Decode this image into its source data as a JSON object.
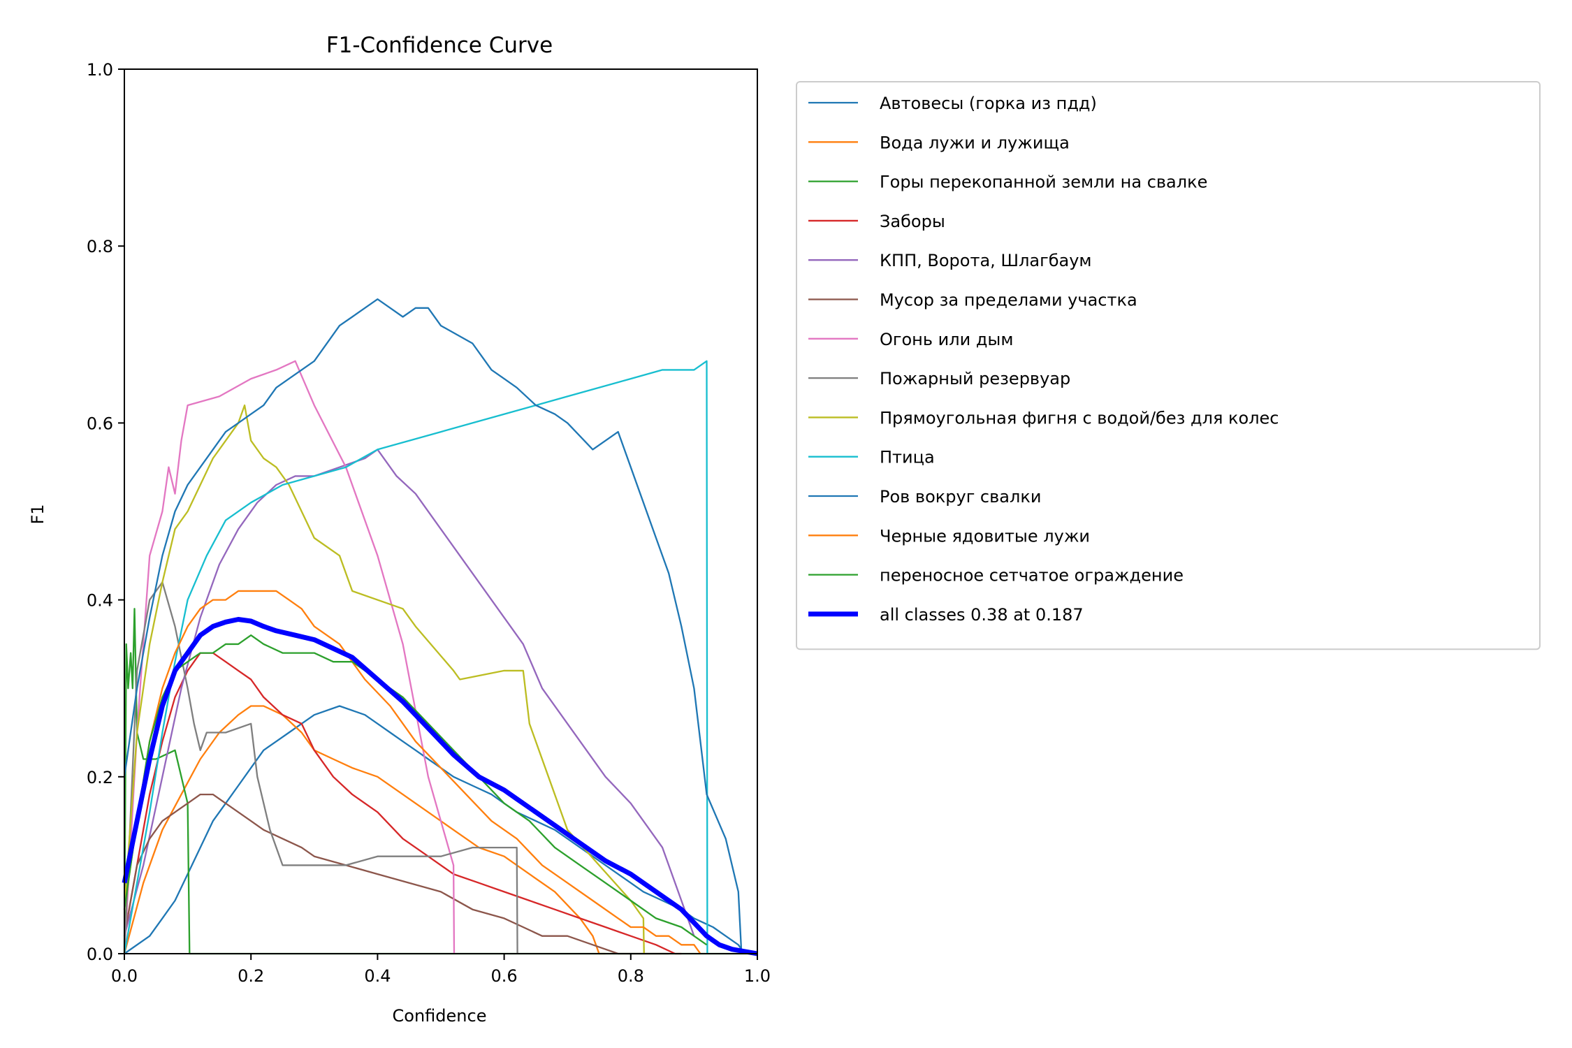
{
  "chart_data": {
    "type": "line",
    "title": "F1-Confidence Curve",
    "xlabel": "Confidence",
    "ylabel": "F1",
    "xlim": [
      0,
      1
    ],
    "ylim": [
      0,
      1
    ],
    "x_ticks": [
      "0.0",
      "0.2",
      "0.4",
      "0.6",
      "0.8",
      "1.0"
    ],
    "y_ticks": [
      "0.0",
      "0.2",
      "0.4",
      "0.6",
      "0.8",
      "1.0"
    ],
    "grid": false,
    "legend_position": "outside-right",
    "series": [
      {
        "name": "Автовесы (горка из пдд)",
        "color": "#1f77b4",
        "width": 1.5,
        "x": [
          0.0,
          0.04,
          0.06,
          0.08,
          0.1,
          0.12,
          0.14,
          0.16,
          0.18,
          0.2,
          0.22,
          0.24,
          0.26,
          0.28,
          0.3,
          0.34,
          0.38,
          0.4,
          0.42,
          0.44,
          0.46,
          0.48,
          0.5,
          0.52,
          0.55,
          0.58,
          0.6,
          0.62,
          0.65,
          0.68,
          0.7,
          0.72,
          0.74,
          0.76,
          0.78,
          0.8,
          0.82,
          0.85,
          0.88,
          0.9,
          0.93,
          0.95,
          0.97,
          0.98
        ],
        "y": [
          0.0,
          0.02,
          0.04,
          0.06,
          0.09,
          0.12,
          0.15,
          0.17,
          0.19,
          0.21,
          0.23,
          0.24,
          0.25,
          0.26,
          0.27,
          0.28,
          0.27,
          0.26,
          0.25,
          0.24,
          0.23,
          0.22,
          0.21,
          0.2,
          0.19,
          0.18,
          0.17,
          0.16,
          0.15,
          0.14,
          0.13,
          0.12,
          0.11,
          0.1,
          0.09,
          0.08,
          0.07,
          0.06,
          0.05,
          0.04,
          0.03,
          0.02,
          0.01,
          0.0
        ]
      },
      {
        "name": "Вода лужи и лужища",
        "color": "#ff7f0e",
        "width": 1.5,
        "x": [
          0.0,
          0.03,
          0.06,
          0.09,
          0.12,
          0.15,
          0.18,
          0.2,
          0.22,
          0.25,
          0.28,
          0.3,
          0.33,
          0.36,
          0.4,
          0.44,
          0.48,
          0.52,
          0.56,
          0.6,
          0.64,
          0.68,
          0.72,
          0.74,
          0.75,
          0.76
        ],
        "y": [
          0.0,
          0.08,
          0.14,
          0.18,
          0.22,
          0.25,
          0.27,
          0.28,
          0.28,
          0.27,
          0.25,
          0.23,
          0.22,
          0.21,
          0.2,
          0.18,
          0.16,
          0.14,
          0.12,
          0.11,
          0.09,
          0.07,
          0.04,
          0.02,
          0.0,
          0.0
        ]
      },
      {
        "name": "Горы перекопанной земли на свалке",
        "color": "#2ca02c",
        "width": 1.5,
        "x": [
          0.0,
          0.003,
          0.006,
          0.01,
          0.013,
          0.016,
          0.02,
          0.03,
          0.05,
          0.08,
          0.1,
          0.103,
          0.11,
          0.2,
          0.4,
          0.6,
          0.8,
          1.0
        ],
        "y": [
          0.0,
          0.35,
          0.3,
          0.34,
          0.3,
          0.39,
          0.25,
          0.22,
          0.22,
          0.23,
          0.17,
          0.0,
          0.0,
          0.0,
          0.0,
          0.0,
          0.0,
          0.0
        ]
      },
      {
        "name": "Заборы",
        "color": "#d62728",
        "width": 1.5,
        "x": [
          0.0,
          0.02,
          0.04,
          0.06,
          0.08,
          0.1,
          0.12,
          0.14,
          0.16,
          0.18,
          0.2,
          0.22,
          0.25,
          0.28,
          0.3,
          0.33,
          0.36,
          0.4,
          0.44,
          0.48,
          0.52,
          0.56,
          0.6,
          0.64,
          0.68,
          0.72,
          0.76,
          0.8,
          0.84,
          0.87,
          0.88
        ],
        "y": [
          0.02,
          0.1,
          0.18,
          0.24,
          0.29,
          0.32,
          0.34,
          0.34,
          0.33,
          0.32,
          0.31,
          0.29,
          0.27,
          0.26,
          0.23,
          0.2,
          0.18,
          0.16,
          0.13,
          0.11,
          0.09,
          0.08,
          0.07,
          0.06,
          0.05,
          0.04,
          0.03,
          0.02,
          0.01,
          0.0,
          0.0
        ]
      },
      {
        "name": "КПП, Ворота, Шлагбаум",
        "color": "#9467bd",
        "width": 1.5,
        "x": [
          0.0,
          0.03,
          0.06,
          0.09,
          0.12,
          0.15,
          0.18,
          0.21,
          0.24,
          0.27,
          0.3,
          0.34,
          0.38,
          0.4,
          0.43,
          0.46,
          0.5,
          0.53,
          0.56,
          0.6,
          0.63,
          0.66,
          0.7,
          0.73,
          0.76,
          0.8,
          0.82,
          0.85,
          0.88,
          0.9
        ],
        "y": [
          0.02,
          0.1,
          0.2,
          0.3,
          0.38,
          0.44,
          0.48,
          0.51,
          0.53,
          0.54,
          0.54,
          0.55,
          0.56,
          0.57,
          0.54,
          0.52,
          0.48,
          0.45,
          0.42,
          0.38,
          0.35,
          0.3,
          0.26,
          0.23,
          0.2,
          0.17,
          0.15,
          0.12,
          0.06,
          0.02
        ]
      },
      {
        "name": "Мусор за пределами участка",
        "color": "#8c564b",
        "width": 1.5,
        "x": [
          0.0,
          0.02,
          0.04,
          0.06,
          0.08,
          0.1,
          0.12,
          0.14,
          0.16,
          0.18,
          0.2,
          0.22,
          0.25,
          0.28,
          0.3,
          0.35,
          0.4,
          0.45,
          0.5,
          0.55,
          0.6,
          0.63,
          0.66,
          0.7,
          0.74,
          0.78,
          0.82,
          0.86
        ],
        "y": [
          0.02,
          0.1,
          0.13,
          0.15,
          0.16,
          0.17,
          0.18,
          0.18,
          0.17,
          0.16,
          0.15,
          0.14,
          0.13,
          0.12,
          0.11,
          0.1,
          0.09,
          0.08,
          0.07,
          0.05,
          0.04,
          0.03,
          0.02,
          0.02,
          0.01,
          0.0,
          0.0,
          0.0
        ]
      },
      {
        "name": "Огонь или дым",
        "color": "#e377c2",
        "width": 1.5,
        "x": [
          0.0,
          0.02,
          0.04,
          0.06,
          0.07,
          0.08,
          0.09,
          0.1,
          0.15,
          0.2,
          0.24,
          0.27,
          0.3,
          0.35,
          0.4,
          0.44,
          0.48,
          0.52,
          0.521
        ],
        "y": [
          0.0,
          0.25,
          0.45,
          0.5,
          0.55,
          0.52,
          0.58,
          0.62,
          0.63,
          0.65,
          0.66,
          0.67,
          0.62,
          0.55,
          0.45,
          0.35,
          0.2,
          0.1,
          0.0
        ]
      },
      {
        "name": "Пожарный резервуар",
        "color": "#7f7f7f",
        "width": 1.5,
        "x": [
          0.0,
          0.02,
          0.04,
          0.06,
          0.08,
          0.1,
          0.11,
          0.12,
          0.13,
          0.14,
          0.16,
          0.2,
          0.21,
          0.23,
          0.25,
          0.3,
          0.35,
          0.4,
          0.45,
          0.5,
          0.55,
          0.6,
          0.62,
          0.621
        ],
        "y": [
          0.0,
          0.32,
          0.4,
          0.42,
          0.37,
          0.3,
          0.26,
          0.23,
          0.25,
          0.25,
          0.25,
          0.26,
          0.2,
          0.14,
          0.1,
          0.1,
          0.1,
          0.11,
          0.11,
          0.11,
          0.12,
          0.12,
          0.12,
          0.0
        ]
      },
      {
        "name": "Прямоугольная фигня с водой/без для колес",
        "color": "#bcbd22",
        "width": 1.5,
        "x": [
          0.0,
          0.02,
          0.04,
          0.06,
          0.08,
          0.1,
          0.12,
          0.14,
          0.16,
          0.18,
          0.19,
          0.2,
          0.22,
          0.24,
          0.26,
          0.28,
          0.3,
          0.34,
          0.36,
          0.44,
          0.46,
          0.52,
          0.53,
          0.6,
          0.63,
          0.64,
          0.67,
          0.7,
          0.75,
          0.8,
          0.82,
          0.821
        ],
        "y": [
          0.05,
          0.25,
          0.35,
          0.42,
          0.48,
          0.5,
          0.53,
          0.56,
          0.58,
          0.6,
          0.62,
          0.58,
          0.56,
          0.55,
          0.53,
          0.5,
          0.47,
          0.45,
          0.41,
          0.39,
          0.37,
          0.32,
          0.31,
          0.32,
          0.32,
          0.26,
          0.2,
          0.14,
          0.1,
          0.06,
          0.04,
          0.0
        ]
      },
      {
        "name": "Птица",
        "color": "#17becf",
        "width": 1.5,
        "x": [
          0.0,
          0.02,
          0.04,
          0.06,
          0.08,
          0.1,
          0.13,
          0.16,
          0.2,
          0.25,
          0.3,
          0.35,
          0.4,
          0.45,
          0.5,
          0.55,
          0.6,
          0.65,
          0.7,
          0.75,
          0.8,
          0.85,
          0.9,
          0.92,
          0.921
        ],
        "y": [
          0.0,
          0.08,
          0.16,
          0.25,
          0.33,
          0.4,
          0.45,
          0.49,
          0.51,
          0.53,
          0.54,
          0.55,
          0.57,
          0.58,
          0.59,
          0.6,
          0.61,
          0.62,
          0.63,
          0.64,
          0.65,
          0.66,
          0.66,
          0.67,
          0.0
        ]
      },
      {
        "name": "Ров вокруг свалки",
        "color": "#1f77b4",
        "width": 1.5,
        "x": [
          0.0,
          0.02,
          0.04,
          0.06,
          0.08,
          0.1,
          0.12,
          0.14,
          0.16,
          0.18,
          0.2,
          0.22,
          0.24,
          0.26,
          0.28,
          0.3,
          0.34,
          0.36,
          0.38,
          0.4,
          0.42,
          0.44,
          0.46,
          0.48,
          0.5,
          0.55,
          0.58,
          0.6,
          0.62,
          0.65,
          0.68,
          0.7,
          0.74,
          0.78,
          0.8,
          0.84,
          0.86,
          0.88,
          0.9,
          0.92,
          0.95,
          0.97,
          0.975
        ],
        "y": [
          0.2,
          0.3,
          0.38,
          0.45,
          0.5,
          0.53,
          0.55,
          0.57,
          0.59,
          0.6,
          0.61,
          0.62,
          0.64,
          0.65,
          0.66,
          0.67,
          0.71,
          0.72,
          0.73,
          0.74,
          0.73,
          0.72,
          0.73,
          0.73,
          0.71,
          0.69,
          0.66,
          0.65,
          0.64,
          0.62,
          0.61,
          0.6,
          0.57,
          0.59,
          0.55,
          0.47,
          0.43,
          0.37,
          0.3,
          0.18,
          0.13,
          0.07,
          0.0
        ]
      },
      {
        "name": "Черные ядовитые лужи",
        "color": "#ff7f0e",
        "width": 1.5,
        "x": [
          0.0,
          0.02,
          0.04,
          0.06,
          0.08,
          0.1,
          0.12,
          0.14,
          0.16,
          0.18,
          0.2,
          0.22,
          0.24,
          0.26,
          0.28,
          0.3,
          0.34,
          0.38,
          0.42,
          0.46,
          0.5,
          0.54,
          0.58,
          0.62,
          0.66,
          0.7,
          0.74,
          0.78,
          0.8,
          0.82,
          0.84,
          0.86,
          0.88,
          0.9,
          0.91
        ],
        "y": [
          0.05,
          0.15,
          0.24,
          0.3,
          0.34,
          0.37,
          0.39,
          0.4,
          0.4,
          0.41,
          0.41,
          0.41,
          0.41,
          0.4,
          0.39,
          0.37,
          0.35,
          0.31,
          0.28,
          0.24,
          0.21,
          0.18,
          0.15,
          0.13,
          0.1,
          0.08,
          0.06,
          0.04,
          0.03,
          0.03,
          0.02,
          0.02,
          0.01,
          0.01,
          0.0
        ]
      },
      {
        "name": "переносное сетчатое ограждение",
        "color": "#2ca02c",
        "width": 1.5,
        "x": [
          0.0,
          0.02,
          0.04,
          0.06,
          0.08,
          0.1,
          0.12,
          0.14,
          0.16,
          0.18,
          0.2,
          0.22,
          0.25,
          0.28,
          0.3,
          0.33,
          0.36,
          0.4,
          0.44,
          0.48,
          0.52,
          0.56,
          0.6,
          0.64,
          0.68,
          0.72,
          0.76,
          0.8,
          0.84,
          0.88,
          0.9,
          0.92
        ],
        "y": [
          0.05,
          0.15,
          0.24,
          0.29,
          0.32,
          0.33,
          0.34,
          0.34,
          0.35,
          0.35,
          0.36,
          0.35,
          0.34,
          0.34,
          0.34,
          0.33,
          0.33,
          0.31,
          0.29,
          0.26,
          0.23,
          0.2,
          0.17,
          0.15,
          0.12,
          0.1,
          0.08,
          0.06,
          0.04,
          0.03,
          0.02,
          0.01
        ]
      },
      {
        "name": "all classes 0.38 at 0.187",
        "color": "#0000ff",
        "width": 4.5,
        "x": [
          0.0,
          0.02,
          0.04,
          0.06,
          0.08,
          0.1,
          0.12,
          0.14,
          0.16,
          0.18,
          0.2,
          0.22,
          0.24,
          0.27,
          0.3,
          0.33,
          0.36,
          0.4,
          0.44,
          0.48,
          0.52,
          0.56,
          0.6,
          0.62,
          0.65,
          0.68,
          0.72,
          0.76,
          0.8,
          0.84,
          0.88,
          0.9,
          0.92,
          0.94,
          0.96,
          1.0
        ],
        "y": [
          0.08,
          0.15,
          0.22,
          0.28,
          0.32,
          0.34,
          0.36,
          0.37,
          0.375,
          0.378,
          0.376,
          0.37,
          0.365,
          0.36,
          0.355,
          0.345,
          0.335,
          0.31,
          0.285,
          0.255,
          0.225,
          0.2,
          0.185,
          0.175,
          0.16,
          0.145,
          0.125,
          0.105,
          0.09,
          0.07,
          0.05,
          0.035,
          0.02,
          0.01,
          0.005,
          0.0
        ]
      }
    ]
  }
}
